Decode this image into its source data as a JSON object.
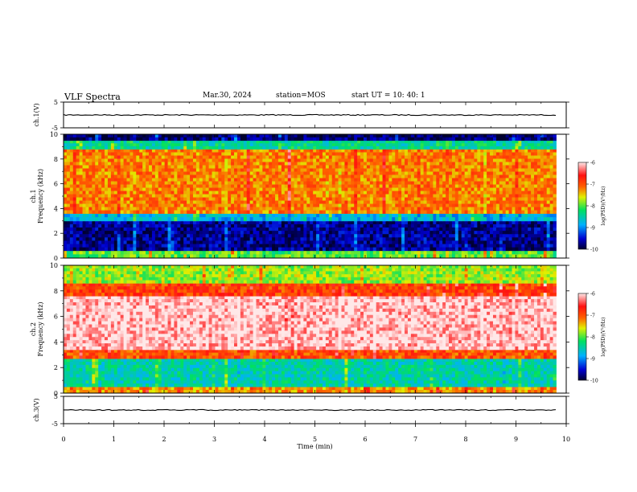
{
  "header": {
    "title": "VLF Spectra",
    "date": "Mar.30, 2024",
    "station": "station=MOS",
    "start": "start UT = 10: 40: 1"
  },
  "colors": {
    "spectrum_low": "#00003c",
    "spectrum_mid": "#00e060",
    "spectrum_high": "#ff1010",
    "trace": "#000000"
  },
  "chart_data": [
    {
      "type": "line",
      "panel": "ch1_waveform",
      "ylabel": "ch.1(V)",
      "ylim": [
        -5,
        5
      ],
      "yticks": [
        "5",
        "-5"
      ],
      "xlim": [
        0,
        10
      ],
      "series": [
        {
          "values_description_level": 0.0,
          "x_end": 9.8
        }
      ]
    },
    {
      "type": "heatmap",
      "panel": "ch1_spectrogram",
      "ylabel": "ch.1\nFrequency (kHz)",
      "ylim": [
        0,
        10
      ],
      "yticks": [
        "0",
        "2",
        "4",
        "6",
        "8",
        "10"
      ],
      "xlim": [
        0,
        10
      ],
      "colorbar": {
        "label": "log(PSD)(V²/Hz)",
        "ticks": [
          "-6",
          "-7",
          "-8",
          "-9",
          "-10"
        ],
        "range": [
          -10,
          -6
        ]
      },
      "bands": [
        {
          "from_khz": 0.0,
          "to_khz": 0.6,
          "level": -8.0
        },
        {
          "from_khz": 0.6,
          "to_khz": 3.0,
          "level": -9.7
        },
        {
          "from_khz": 3.0,
          "to_khz": 3.6,
          "level": -8.8
        },
        {
          "from_khz": 3.6,
          "to_khz": 8.8,
          "level": -7.2
        },
        {
          "from_khz": 8.8,
          "to_khz": 9.5,
          "level": -8.4
        },
        {
          "from_khz": 9.5,
          "to_khz": 10.0,
          "level": -9.8
        }
      ],
      "data_end_min": 9.8
    },
    {
      "type": "heatmap",
      "panel": "ch2_spectrogram",
      "ylabel": "ch.2\nFrequency (kHz)",
      "ylim": [
        0,
        10
      ],
      "yticks": [
        "0",
        "2",
        "4",
        "6",
        "8",
        "10"
      ],
      "xlim": [
        0,
        10
      ],
      "colorbar": {
        "label": "log(PSD)(V²/Hz)",
        "ticks": [
          "-6",
          "-7",
          "-8",
          "-9",
          "-10"
        ],
        "range": [
          -10,
          -6
        ]
      },
      "bands": [
        {
          "from_khz": 0.0,
          "to_khz": 0.5,
          "level": -7.3
        },
        {
          "from_khz": 0.5,
          "to_khz": 2.7,
          "level": -8.5
        },
        {
          "from_khz": 2.7,
          "to_khz": 3.4,
          "level": -7.0
        },
        {
          "from_khz": 3.4,
          "to_khz": 7.6,
          "level": -6.1
        },
        {
          "from_khz": 7.6,
          "to_khz": 8.6,
          "level": -6.9
        },
        {
          "from_khz": 8.6,
          "to_khz": 10.0,
          "level": -7.8
        }
      ],
      "data_end_min": 9.8
    },
    {
      "type": "line",
      "panel": "ch3_waveform",
      "ylabel": "ch.3(V)",
      "ylim": [
        -5,
        5
      ],
      "yticks": [
        "5",
        "-5"
      ],
      "xlim": [
        0,
        10
      ],
      "xlabel": "Time (min)",
      "xticks": [
        "0",
        "1",
        "2",
        "3",
        "4",
        "5",
        "6",
        "7",
        "8",
        "9",
        "10"
      ],
      "series": [
        {
          "values_description_level": 0.0,
          "x_end": 9.8
        }
      ]
    }
  ]
}
